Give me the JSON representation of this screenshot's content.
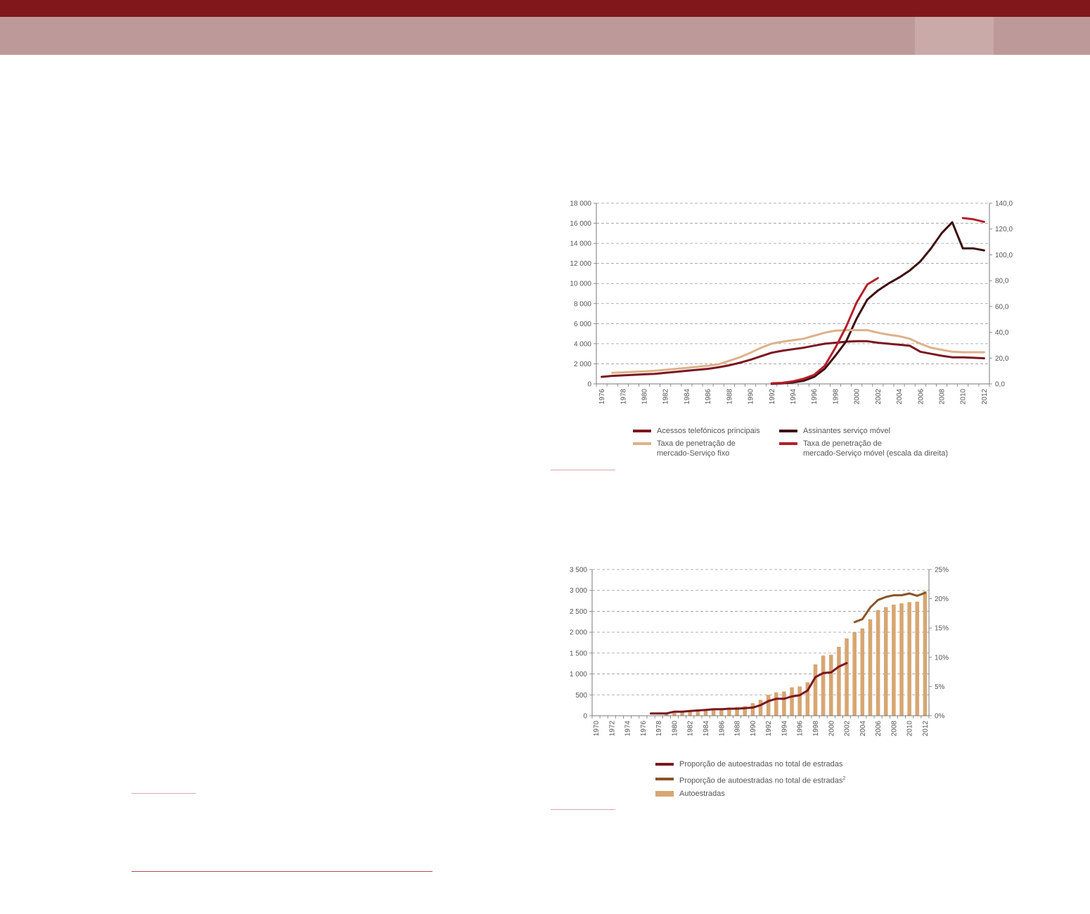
{
  "colors": {
    "header": "#81171b",
    "subheader": "#bd9a99",
    "tab": "#c9aaa8"
  },
  "chart_data": [
    {
      "type": "line",
      "title": "",
      "x": [
        "1976",
        "1977",
        "1978",
        "1979",
        "1980",
        "1981",
        "1982",
        "1983",
        "1984",
        "1985",
        "1986",
        "1987",
        "1988",
        "1989",
        "1990",
        "1991",
        "1992",
        "1993",
        "1994",
        "1995",
        "1996",
        "1997",
        "1998",
        "1999",
        "2000",
        "2001",
        "2002",
        "2003",
        "2004",
        "2005",
        "2006",
        "2007",
        "2008",
        "2009",
        "2010",
        "2011",
        "2012"
      ],
      "x_tick_labels": [
        "1976",
        "1978",
        "1980",
        "1982",
        "1984",
        "1986",
        "1988",
        "1990",
        "1992",
        "1994",
        "1996",
        "1998",
        "2000",
        "2002",
        "2004",
        "2006",
        "2008",
        "2010",
        "2012"
      ],
      "y_left": {
        "ylim": [
          0,
          18000
        ],
        "ticks": [
          "0",
          "2 000",
          "4 000",
          "6 000",
          "8 000",
          "10 000",
          "12 000",
          "14 000",
          "16 000",
          "18 000"
        ]
      },
      "y_right": {
        "ylim": [
          0,
          140
        ],
        "ticks": [
          "0,0",
          "20,0",
          "40,0",
          "60,0",
          "80,0",
          "100,0",
          "120,0",
          "140,0"
        ]
      },
      "grid": true,
      "legend_position": "bottom",
      "series": [
        {
          "name": "Acessos telefónicos principais",
          "color": "#7a1620",
          "axis": "left",
          "values": [
            700,
            800,
            850,
            900,
            950,
            1000,
            1100,
            1200,
            1300,
            1400,
            1500,
            1650,
            1850,
            2100,
            2400,
            2750,
            3100,
            3300,
            3450,
            3600,
            3800,
            4000,
            4100,
            4200,
            4250,
            4250,
            4100,
            4000,
            3900,
            3800,
            3200,
            3000,
            2800,
            2650,
            2650,
            2600,
            2550
          ]
        },
        {
          "name": "Assinantes serviço móvel",
          "color": "#3e0e10",
          "axis": "left",
          "values": [
            null,
            null,
            null,
            null,
            null,
            null,
            null,
            null,
            null,
            null,
            null,
            null,
            null,
            null,
            null,
            null,
            0,
            50,
            150,
            300,
            700,
            1500,
            2800,
            4200,
            6500,
            8400,
            9300,
            10000,
            10600,
            11300,
            12200,
            13500,
            15000,
            16100,
            13500,
            13500,
            13300
          ]
        },
        {
          "name": "Taxa de penetração de\nmercado-Serviço fixo",
          "color": "#ddb18a",
          "axis": "left",
          "values": [
            null,
            1100,
            1150,
            1200,
            1250,
            1300,
            1400,
            1500,
            1600,
            1700,
            1800,
            1950,
            2300,
            2650,
            3100,
            3600,
            4000,
            4200,
            4350,
            4500,
            4800,
            5100,
            5300,
            5350,
            5350,
            5350,
            5100,
            4900,
            4750,
            4500,
            4000,
            3600,
            3400,
            3200,
            3150,
            3150,
            3150
          ]
        },
        {
          "name": "Taxa de penetração de\nmercado-Serviço móvel (escala da direita)",
          "color": "#b41f2b",
          "axis": "right",
          "values": [
            null,
            null,
            null,
            null,
            null,
            null,
            null,
            null,
            null,
            null,
            null,
            null,
            null,
            null,
            null,
            null,
            0.5,
            0.8,
            2,
            4,
            7,
            14,
            28,
            44,
            63,
            77,
            82,
            null,
            null,
            null,
            null,
            null,
            null,
            null,
            128.5,
            127.5,
            125.5
          ]
        }
      ]
    },
    {
      "type": "bar",
      "title": "",
      "x": [
        "1970",
        "1971",
        "1972",
        "1973",
        "1974",
        "1975",
        "1976",
        "1977",
        "1978",
        "1979",
        "1980",
        "1981",
        "1982",
        "1983",
        "1984",
        "1985",
        "1986",
        "1987",
        "1988",
        "1989",
        "1990",
        "1991",
        "1992",
        "1993",
        "1994",
        "1995",
        "1996",
        "1997",
        "1998",
        "1999",
        "2000",
        "2001",
        "2002",
        "2003",
        "2004",
        "2005",
        "2006",
        "2007",
        "2008",
        "2009",
        "2010",
        "2011",
        "2012"
      ],
      "x_tick_labels": [
        "1970",
        "1972",
        "1974",
        "1976",
        "1978",
        "1980",
        "1982",
        "1984",
        "1986",
        "1988",
        "1990",
        "1992",
        "1994",
        "1996",
        "1998",
        "2000",
        "2002",
        "2004",
        "2006",
        "2008",
        "2010",
        "2012"
      ],
      "y_left": {
        "ylim": [
          0,
          3500
        ],
        "ticks": [
          "0",
          "500",
          "1 000",
          "1 500",
          "2 000",
          "2 500",
          "3 000",
          "3 500"
        ]
      },
      "y_right": {
        "ylim": [
          0,
          0.25
        ],
        "ticks": [
          "0%",
          "5%",
          "10%",
          "15%",
          "20%",
          "25%"
        ]
      },
      "grid": true,
      "legend_position": "bottom",
      "series": [
        {
          "name": "Autoestradas",
          "kind": "bar",
          "color": "#d7a672",
          "axis": "left",
          "values": [
            0,
            0,
            0,
            0,
            0,
            0,
            0,
            0,
            0,
            50,
            70,
            90,
            110,
            130,
            150,
            165,
            180,
            195,
            210,
            230,
            300,
            380,
            500,
            560,
            580,
            680,
            700,
            800,
            1230,
            1440,
            1460,
            1650,
            1850,
            2000,
            2090,
            2310,
            2530,
            2600,
            2660,
            2690,
            2720,
            2730,
            2980
          ]
        },
        {
          "name": "Proporção de autoestradas no total de estradas",
          "kind": "line",
          "color": "#7a1620",
          "axis": "right",
          "values": [
            null,
            null,
            null,
            null,
            null,
            null,
            null,
            0.004,
            0.004,
            0.004,
            0.007,
            0.007,
            0.008,
            0.009,
            0.01,
            0.011,
            0.011,
            0.012,
            0.012,
            0.013,
            0.014,
            0.018,
            0.025,
            0.029,
            0.029,
            0.033,
            0.035,
            0.043,
            0.066,
            0.073,
            0.074,
            0.084,
            0.09,
            null,
            null,
            null,
            null,
            null,
            null,
            null,
            null,
            null,
            null
          ]
        },
        {
          "name": "Proporção de autoestradas no total de estradas",
          "name_superscript": "2",
          "kind": "line",
          "color": "#8a5526",
          "axis": "right",
          "values": [
            null,
            null,
            null,
            null,
            null,
            null,
            null,
            null,
            null,
            null,
            null,
            null,
            null,
            null,
            null,
            null,
            null,
            null,
            null,
            null,
            null,
            null,
            null,
            null,
            null,
            null,
            null,
            null,
            null,
            null,
            null,
            null,
            null,
            0.16,
            0.165,
            0.185,
            0.198,
            0.203,
            0.206,
            0.206,
            0.209,
            0.205,
            0.21
          ]
        }
      ]
    }
  ]
}
